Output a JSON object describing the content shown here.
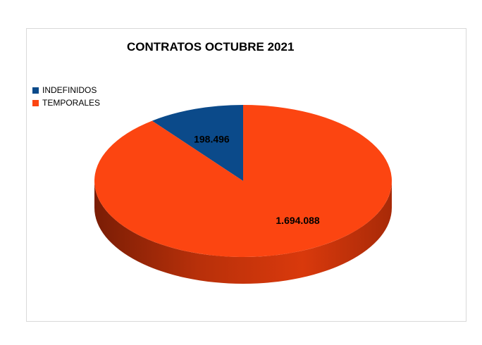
{
  "chart_data": {
    "type": "pie",
    "title": "CONTRATOS OCTUBRE 2021",
    "legend_position": "left",
    "categories": [
      "INDEFINIDOS",
      "TEMPORALES"
    ],
    "values": [
      198496,
      1694088
    ],
    "data_labels": [
      "198.496",
      "1.694.088"
    ],
    "colors": [
      "#0b4a8a",
      "#fc4511"
    ],
    "side_colors": [
      "#08305a",
      "#b52e0a"
    ],
    "style": "3d"
  }
}
